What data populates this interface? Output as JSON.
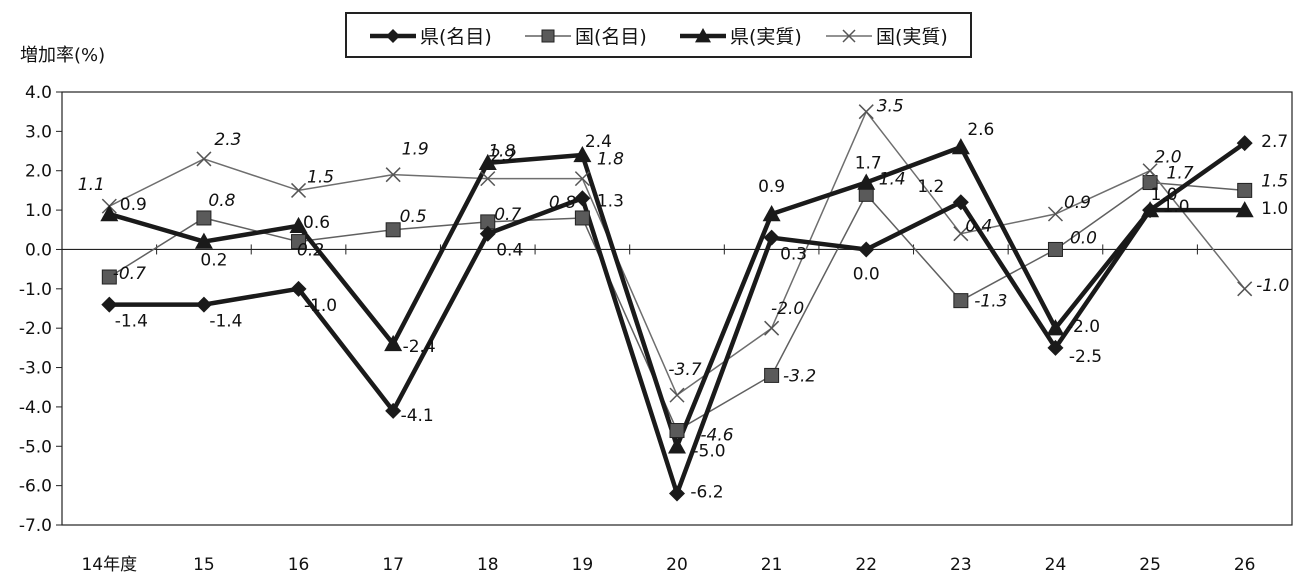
{
  "chart_data": {
    "type": "line",
    "ylabel": "増加率(%)",
    "categories": [
      "14年度",
      "15",
      "16",
      "17",
      "18",
      "19",
      "20",
      "21",
      "22",
      "23",
      "24",
      "25",
      "26"
    ],
    "ylim": [
      -7.0,
      4.0
    ],
    "yticks": [
      "4.0",
      "3.0",
      "2.0",
      "1.0",
      "0.0",
      "-1.0",
      "-2.0",
      "-3.0",
      "-4.0",
      "-5.0",
      "-6.0",
      "-7.0"
    ],
    "legend_position": "top",
    "series": [
      {
        "name": "県(名目)",
        "marker": "diamond",
        "color": "#1a1a1a",
        "values": [
          -1.4,
          -1.4,
          -1.0,
          -4.1,
          0.4,
          1.3,
          -6.2,
          0.3,
          0.0,
          1.2,
          -2.5,
          1.0,
          2.7
        ],
        "labels": [
          "-1.4",
          "-1.4",
          "-1.0",
          "-4.1",
          "0.4",
          "1.3",
          "-6.2",
          "0.3",
          "0.0",
          "1.2",
          "-2.5",
          "1.0",
          "2.7"
        ]
      },
      {
        "name": "国(名目)",
        "marker": "square",
        "color": "#555555",
        "values": [
          -0.7,
          0.8,
          0.2,
          0.5,
          0.7,
          0.8,
          -4.6,
          -3.2,
          1.4,
          -1.3,
          0.0,
          1.7,
          1.5
        ],
        "labels": [
          "-0.7",
          "0.8",
          "0.2",
          "0.5",
          "0.7",
          "0.8",
          "-4.6",
          "-3.2",
          "1.4",
          "-1.3",
          "0.0",
          "1.7",
          "1.5"
        ]
      },
      {
        "name": "県(実質)",
        "marker": "triangle",
        "color": "#1a1a1a",
        "values": [
          0.9,
          0.2,
          0.6,
          -2.4,
          2.2,
          2.4,
          -5.0,
          0.9,
          1.7,
          2.6,
          -2.0,
          1.0,
          1.0
        ],
        "labels": [
          "0.9",
          "0.2",
          "0.6",
          "-2.4",
          "2.2",
          "2.4",
          "-5.0",
          "0.9",
          "1.7",
          "2.6",
          "-2.0",
          "1.0",
          "1.0"
        ]
      },
      {
        "name": "国(実質)",
        "marker": "x",
        "color": "#666666",
        "values": [
          1.1,
          2.3,
          1.5,
          1.9,
          1.8,
          1.8,
          -3.7,
          -2.0,
          3.5,
          0.4,
          0.9,
          2.0,
          -1.0
        ],
        "labels": [
          "1.1",
          "2.3",
          "1.5",
          "1.9",
          "1.8",
          "1.8",
          "-3.7",
          "-2.0",
          "3.5",
          "0.4",
          "0.9",
          "2.0",
          "-1.0"
        ]
      }
    ]
  }
}
